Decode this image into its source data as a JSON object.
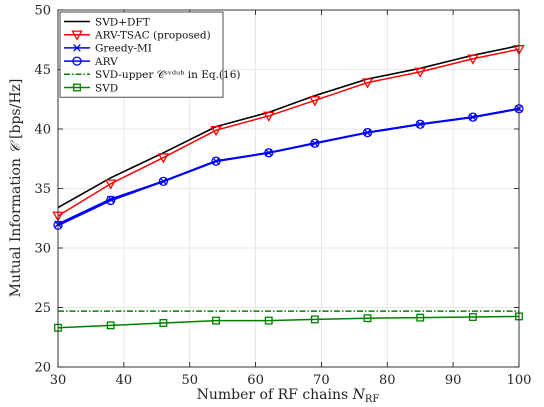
{
  "chart_data": {
    "type": "line",
    "xlabel": "Number of RF chains N_RF",
    "ylabel": "Mutual Information 𝒞 [bps/Hz]",
    "xlim": [
      30,
      100
    ],
    "ylim": [
      20,
      50
    ],
    "xticks": [
      30,
      40,
      50,
      60,
      70,
      80,
      90,
      100
    ],
    "yticks": [
      20,
      25,
      30,
      35,
      40,
      45,
      50
    ],
    "grid": true,
    "legend_position": "top-left",
    "x": [
      30,
      38,
      46,
      54,
      62,
      69,
      77,
      85,
      93,
      100
    ],
    "series": [
      {
        "name": "SVD+DFT",
        "color": "#000000",
        "marker": "none",
        "dash": "solid",
        "values": [
          33.4,
          35.9,
          38.0,
          40.2,
          41.4,
          42.8,
          44.2,
          45.1,
          46.2,
          47.0
        ]
      },
      {
        "name": "ARV-TSAC (proposed)",
        "color": "#ff0000",
        "marker": "triangle-down",
        "dash": "solid",
        "values": [
          32.7,
          35.4,
          37.6,
          39.9,
          41.1,
          42.4,
          43.9,
          44.8,
          45.9,
          46.7
        ]
      },
      {
        "name": "Greedy-MI",
        "color": "#0000ff",
        "marker": "x",
        "dash": "solid",
        "values": [
          32.0,
          34.1,
          35.6,
          37.3,
          38.0,
          38.8,
          39.7,
          40.4,
          41.0,
          41.7
        ]
      },
      {
        "name": "ARV",
        "color": "#0000ff",
        "marker": "circle",
        "dash": "solid",
        "values": [
          31.9,
          34.0,
          35.6,
          37.3,
          38.0,
          38.8,
          39.7,
          40.4,
          41.0,
          41.7
        ]
      },
      {
        "name": "SVD-upper 𝒞ˢᵛᵈᵘᵇ in Eq.(16)",
        "color": "#008000",
        "marker": "none",
        "dash": "dashdot",
        "values": [
          24.7,
          24.7,
          24.7,
          24.7,
          24.7,
          24.7,
          24.7,
          24.7,
          24.7,
          24.7
        ]
      },
      {
        "name": "SVD",
        "color": "#008000",
        "marker": "square",
        "dash": "solid",
        "values": [
          23.3,
          23.5,
          23.7,
          23.9,
          23.9,
          24.0,
          24.1,
          24.15,
          24.2,
          24.25
        ]
      }
    ]
  }
}
